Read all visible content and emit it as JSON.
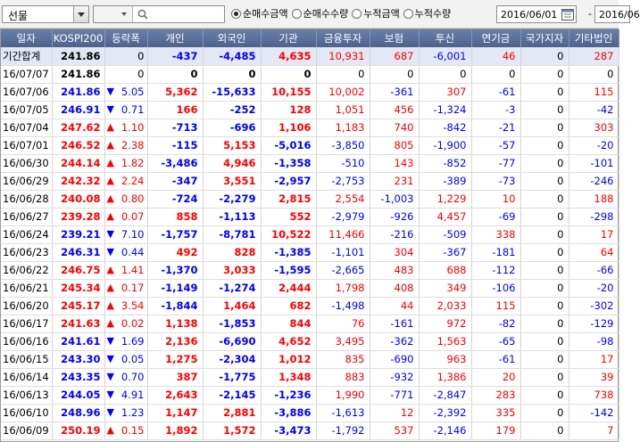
{
  "toolbar": {
    "market_select": "선물",
    "radio_options": [
      "순매수금액",
      "순매수수량",
      "누적금액",
      "누적수량"
    ],
    "radio_selected": 0,
    "date_from": "2016/06/01",
    "date_to": "2016/06"
  },
  "columns": [
    "일자",
    "KOSPI200",
    "등락폭",
    "개인",
    "외국인",
    "기관",
    "금융투자",
    "보험",
    "투신",
    "연기금",
    "국가지자",
    "기타법인"
  ],
  "summary": {
    "label": "기간합계",
    "kospi": "241.86",
    "change": "0",
    "values": [
      "-437",
      "-4,485",
      "4,635",
      "10,931",
      "687",
      "-6,001",
      "46",
      "0",
      "287"
    ]
  },
  "rows": [
    {
      "date": "16/07/07",
      "kospi": "241.86",
      "dir": "",
      "change": "0",
      "values": [
        "0",
        "0",
        "0",
        "0",
        "0",
        "0",
        "0",
        "0",
        "0"
      ]
    },
    {
      "date": "16/07/06",
      "kospi": "241.86",
      "dir": "down",
      "change": "5.05",
      "values": [
        "5,362",
        "-15,633",
        "10,155",
        "10,002",
        "-361",
        "307",
        "-61",
        "0",
        "115"
      ]
    },
    {
      "date": "16/07/05",
      "kospi": "246.91",
      "dir": "down",
      "change": "0.71",
      "values": [
        "166",
        "-252",
        "128",
        "1,051",
        "456",
        "-1,324",
        "-3",
        "0",
        "-42"
      ]
    },
    {
      "date": "16/07/04",
      "kospi": "247.62",
      "dir": "up",
      "change": "1.10",
      "values": [
        "-713",
        "-696",
        "1,106",
        "1,183",
        "740",
        "-842",
        "-21",
        "0",
        "303"
      ]
    },
    {
      "date": "16/07/01",
      "kospi": "246.52",
      "dir": "up",
      "change": "2.38",
      "values": [
        "-115",
        "5,153",
        "-5,016",
        "-3,850",
        "805",
        "-1,900",
        "-57",
        "0",
        "-20"
      ]
    },
    {
      "date": "16/06/30",
      "kospi": "244.14",
      "dir": "up",
      "change": "1.82",
      "values": [
        "-3,486",
        "4,946",
        "-1,358",
        "-510",
        "143",
        "-852",
        "-77",
        "0",
        "-101"
      ]
    },
    {
      "date": "16/06/29",
      "kospi": "242.32",
      "dir": "up",
      "change": "2.24",
      "values": [
        "-347",
        "3,551",
        "-2,957",
        "-2,753",
        "231",
        "-389",
        "-73",
        "0",
        "-246"
      ]
    },
    {
      "date": "16/06/28",
      "kospi": "240.08",
      "dir": "up",
      "change": "0.80",
      "values": [
        "-724",
        "-2,279",
        "2,815",
        "2,554",
        "-1,003",
        "1,229",
        "10",
        "0",
        "188"
      ]
    },
    {
      "date": "16/06/27",
      "kospi": "239.28",
      "dir": "up",
      "change": "0.07",
      "values": [
        "858",
        "-1,113",
        "552",
        "-2,979",
        "-926",
        "4,457",
        "-69",
        "0",
        "-298"
      ]
    },
    {
      "date": "16/06/24",
      "kospi": "239.21",
      "dir": "down",
      "change": "7.10",
      "values": [
        "-1,757",
        "-8,781",
        "10,522",
        "11,466",
        "-216",
        "-509",
        "338",
        "0",
        "17"
      ]
    },
    {
      "date": "16/06/23",
      "kospi": "246.31",
      "dir": "down",
      "change": "0.44",
      "values": [
        "492",
        "828",
        "-1,385",
        "-1,101",
        "304",
        "-367",
        "-181",
        "0",
        "64"
      ]
    },
    {
      "date": "16/06/22",
      "kospi": "246.75",
      "dir": "up",
      "change": "1.41",
      "values": [
        "-1,370",
        "3,033",
        "-1,595",
        "-2,665",
        "483",
        "688",
        "-112",
        "0",
        "-66"
      ]
    },
    {
      "date": "16/06/21",
      "kospi": "245.34",
      "dir": "up",
      "change": "0.17",
      "values": [
        "-1,149",
        "-1,274",
        "2,444",
        "1,798",
        "408",
        "349",
        "-106",
        "0",
        "-20"
      ]
    },
    {
      "date": "16/06/20",
      "kospi": "245.17",
      "dir": "up",
      "change": "3.54",
      "values": [
        "-1,844",
        "1,464",
        "682",
        "-1,498",
        "44",
        "2,033",
        "115",
        "0",
        "-302"
      ]
    },
    {
      "date": "16/06/17",
      "kospi": "241.63",
      "dir": "up",
      "change": "0.02",
      "values": [
        "1,138",
        "-1,853",
        "844",
        "76",
        "-161",
        "972",
        "-82",
        "0",
        "-129"
      ]
    },
    {
      "date": "16/06/16",
      "kospi": "241.61",
      "dir": "down",
      "change": "1.69",
      "values": [
        "2,136",
        "-6,690",
        "4,652",
        "3,495",
        "-362",
        "1,563",
        "-65",
        "0",
        "-98"
      ]
    },
    {
      "date": "16/06/15",
      "kospi": "243.30",
      "dir": "down",
      "change": "0.05",
      "values": [
        "1,275",
        "-2,304",
        "1,012",
        "835",
        "-690",
        "963",
        "-61",
        "0",
        "17"
      ]
    },
    {
      "date": "16/06/14",
      "kospi": "243.35",
      "dir": "down",
      "change": "0.70",
      "values": [
        "387",
        "-1,775",
        "1,348",
        "883",
        "-932",
        "1,386",
        "20",
        "0",
        "39"
      ]
    },
    {
      "date": "16/06/13",
      "kospi": "244.05",
      "dir": "down",
      "change": "4.91",
      "values": [
        "2,643",
        "-2,145",
        "-1,236",
        "1,990",
        "-771",
        "-2,847",
        "283",
        "0",
        "738"
      ]
    },
    {
      "date": "16/06/10",
      "kospi": "248.96",
      "dir": "down",
      "change": "1.23",
      "values": [
        "1,147",
        "2,881",
        "-3,886",
        "-1,613",
        "12",
        "-2,392",
        "335",
        "0",
        "-142"
      ]
    },
    {
      "date": "16/06/09",
      "kospi": "250.19",
      "dir": "up",
      "change": "0.15",
      "values": [
        "1,892",
        "1,572",
        "-3,473",
        "-1,792",
        "537",
        "-2,146",
        "179",
        "0",
        "7"
      ]
    }
  ],
  "colors": {
    "positive": "#ff0000",
    "negative": "#0000ff",
    "header_bg": "#5a6f9a",
    "summary_bg": "#e3e8f4"
  }
}
